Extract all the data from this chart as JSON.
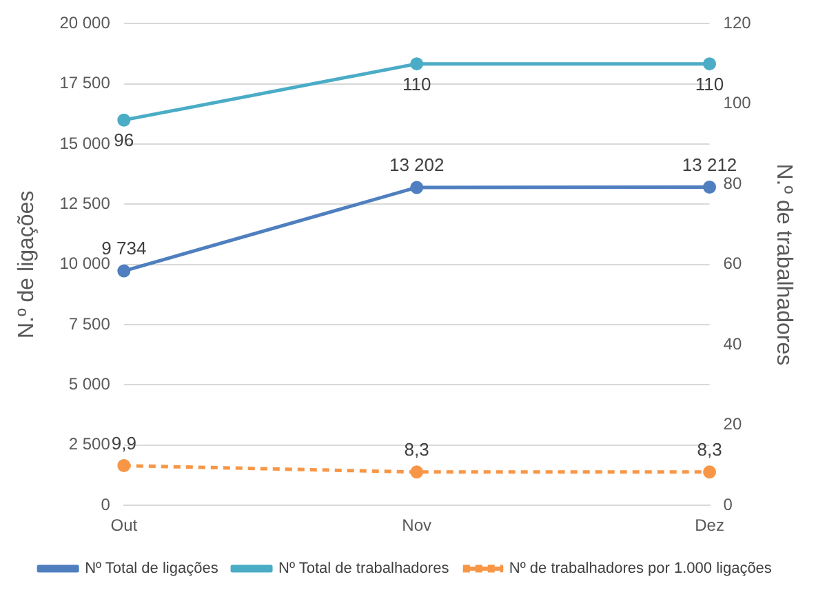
{
  "chart_data": {
    "type": "line",
    "categories": [
      "Out",
      "Nov",
      "Dez"
    ],
    "series": [
      {
        "name": "Nº Total de ligações",
        "color": "#4f7fbf",
        "values": [
          9734,
          13202,
          13212
        ],
        "value_labels": [
          "9 734",
          "13 202",
          "13 212"
        ]
      },
      {
        "name": "Nº Total de trabalhadores",
        "color": "#4bacc6",
        "values": [
          96,
          110,
          110
        ],
        "axis": "y2",
        "value_labels": [
          "96",
          "110",
          "110"
        ]
      },
      {
        "name": "Nº de trabalhadores por 1.000 ligações",
        "color": "#f79646",
        "values": [
          9.9,
          8.3,
          8.3
        ],
        "axis": "y2",
        "line_style": "dashed",
        "value_labels": [
          "9,9",
          "8,3",
          "8,3"
        ]
      }
    ],
    "ylabel": "N.º de ligações",
    "y2label": "N.º de trabalhadores",
    "ylim": [
      0,
      20000
    ],
    "yticks": [
      0,
      {
        "value": 2500,
        "label": "2 500"
      },
      {
        "value": 5000,
        "label": "5 000"
      },
      {
        "value": 7500,
        "label": "7 500"
      },
      {
        "value": 10000,
        "label": "10 000"
      },
      {
        "value": 12500,
        "label": "12 500"
      },
      {
        "value": 15000,
        "label": "15 000"
      },
      {
        "value": 17500,
        "label": "17 500"
      },
      {
        "value": 20000,
        "label": "20 000"
      }
    ],
    "y2lim": [
      0,
      120
    ],
    "y2ticks": [
      0,
      20,
      40,
      60,
      80,
      100,
      120
    ],
    "grid": "y",
    "legend": "bottom",
    "marker": "circle"
  }
}
